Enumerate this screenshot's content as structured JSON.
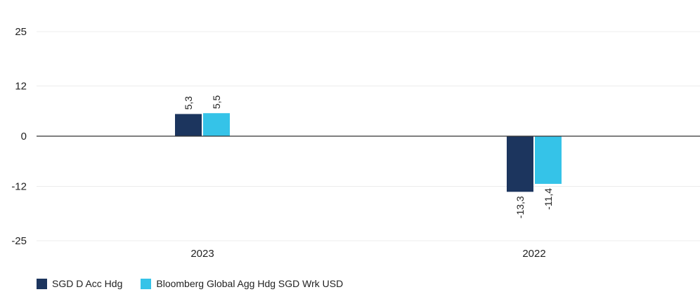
{
  "chart_data": {
    "type": "bar",
    "categories": [
      "2023",
      "2022"
    ],
    "series": [
      {
        "name": "SGD D Acc Hdg",
        "values": [
          5.3,
          -13.3
        ],
        "labels": [
          "5,3",
          "-13,3"
        ],
        "color": "#1c355e"
      },
      {
        "name": "Bloomberg Global Agg Hdg SGD Wrk USD",
        "values": [
          5.5,
          -11.4
        ],
        "labels": [
          "5,5",
          "-11,4"
        ],
        "color": "#35c3e8"
      }
    ],
    "yticks": [
      25,
      12,
      0,
      -12,
      -25
    ],
    "ylim": [
      -25,
      25
    ],
    "grid": true,
    "legend_position": "bottom-left"
  }
}
